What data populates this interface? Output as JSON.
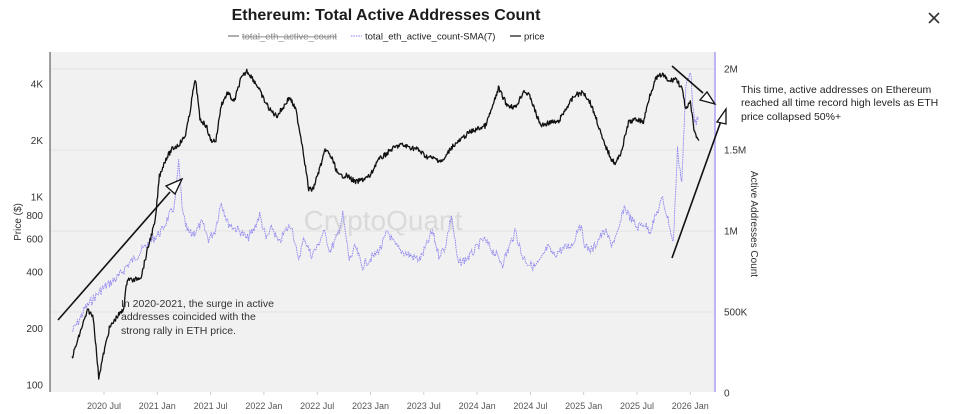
{
  "dialog": {
    "close_icon": "close-icon"
  },
  "chart_data": {
    "type": "line",
    "title": "Ethereum: Total Active Addresses Count",
    "legend": [
      {
        "name": "total_eth_active_count",
        "hidden": true,
        "color": "#777777"
      },
      {
        "name": "total_eth_active_count-SMA(7)",
        "hidden": false,
        "color": "#8c84f0"
      },
      {
        "name": "price",
        "hidden": false,
        "color": "#111111"
      }
    ],
    "legend_position": "top-center",
    "watermark": "CryptoQuant",
    "xlabel": "",
    "x_ticks": [
      "2020 Jul",
      "2021 Jan",
      "2021 Jul",
      "2022 Jan",
      "2022 Jul",
      "2023 Jan",
      "2023 Jul",
      "2024 Jan",
      "2024 Jul",
      "2025 Jan",
      "2025 Jul",
      "2026 Jan"
    ],
    "x_range": [
      "2020-03",
      "2026-02"
    ],
    "y_left": {
      "label": "Price ($)",
      "scale": "log",
      "ticks": [
        {
          "value": 100,
          "label": "100"
        },
        {
          "value": 200,
          "label": "200"
        },
        {
          "value": 400,
          "label": "400"
        },
        {
          "value": 600,
          "label": "600"
        },
        {
          "value": 800,
          "label": "800"
        },
        {
          "value": 1000,
          "label": "1K"
        },
        {
          "value": 2000,
          "label": "2K"
        },
        {
          "value": 4000,
          "label": "4K"
        }
      ],
      "range": [
        95,
        5000
      ]
    },
    "y_right": {
      "label": "Active Addresses Count",
      "scale": "linear",
      "ticks": [
        {
          "value": 0,
          "label": "0"
        },
        {
          "value": 500000,
          "label": "500K"
        },
        {
          "value": 1000000,
          "label": "1M"
        },
        {
          "value": 1500000,
          "label": "1.5M"
        },
        {
          "value": 2000000,
          "label": "2M"
        }
      ],
      "range": [
        0,
        2100000
      ]
    },
    "series": [
      {
        "name": "price",
        "axis": "left",
        "x": [
          2020.2,
          2020.25,
          2020.3,
          2020.35,
          2020.4,
          2020.45,
          2020.5,
          2020.55,
          2020.62,
          2020.68,
          2020.72,
          2020.78,
          2020.85,
          2020.92,
          2020.98,
          2021.02,
          2021.08,
          2021.14,
          2021.2,
          2021.26,
          2021.3,
          2021.34,
          2021.36,
          2021.4,
          2021.46,
          2021.5,
          2021.55,
          2021.6,
          2021.66,
          2021.72,
          2021.78,
          2021.84,
          2021.88,
          2021.94,
          2022.0,
          2022.06,
          2022.12,
          2022.18,
          2022.24,
          2022.3,
          2022.36,
          2022.42,
          2022.46,
          2022.52,
          2022.58,
          2022.64,
          2022.7,
          2022.78,
          2022.86,
          2022.94,
          2023.0,
          2023.06,
          2023.12,
          2023.2,
          2023.28,
          2023.36,
          2023.44,
          2023.52,
          2023.6,
          2023.68,
          2023.76,
          2023.84,
          2023.92,
          2024.0,
          2024.08,
          2024.16,
          2024.2,
          2024.28,
          2024.36,
          2024.44,
          2024.5,
          2024.56,
          2024.6,
          2024.68,
          2024.76,
          2024.84,
          2024.92,
          2025.0,
          2025.06,
          2025.12,
          2025.18,
          2025.26,
          2025.3,
          2025.36,
          2025.42,
          2025.5,
          2025.56,
          2025.62,
          2025.68,
          2025.74,
          2025.8,
          2025.86,
          2025.92,
          2025.96,
          2026.0,
          2026.04,
          2026.08
        ],
        "values": [
          140,
          170,
          210,
          250,
          230,
          110,
          150,
          200,
          230,
          250,
          370,
          360,
          380,
          560,
          740,
          1300,
          1600,
          1800,
          1900,
          2100,
          2700,
          3800,
          4200,
          2600,
          2400,
          2000,
          2000,
          3100,
          3600,
          3200,
          4200,
          4700,
          4400,
          3900,
          3300,
          2900,
          2700,
          3000,
          3400,
          2900,
          1900,
          1100,
          1100,
          1400,
          1800,
          1600,
          1300,
          1300,
          1200,
          1250,
          1300,
          1550,
          1650,
          1800,
          1900,
          1850,
          1800,
          1650,
          1600,
          1550,
          1850,
          2000,
          2200,
          2300,
          2400,
          3200,
          3800,
          3100,
          3000,
          3700,
          3400,
          2700,
          2400,
          2500,
          2500,
          3000,
          3500,
          3600,
          3200,
          2600,
          2000,
          1600,
          1500,
          1800,
          2500,
          2600,
          2500,
          3500,
          4300,
          4500,
          4100,
          4300,
          3800,
          2900,
          3200,
          2200,
          2000
        ]
      },
      {
        "name": "total_eth_active_count-SMA(7)",
        "axis": "right",
        "x": [
          2020.2,
          2020.26,
          2020.32,
          2020.4,
          2020.48,
          2020.56,
          2020.64,
          2020.72,
          2020.8,
          2020.88,
          2020.96,
          2021.04,
          2021.1,
          2021.16,
          2021.2,
          2021.24,
          2021.28,
          2021.32,
          2021.36,
          2021.42,
          2021.48,
          2021.54,
          2021.6,
          2021.66,
          2021.72,
          2021.78,
          2021.84,
          2021.9,
          2021.96,
          2022.02,
          2022.08,
          2022.14,
          2022.2,
          2022.26,
          2022.32,
          2022.38,
          2022.44,
          2022.5,
          2022.56,
          2022.62,
          2022.68,
          2022.74,
          2022.8,
          2022.86,
          2022.92,
          2022.98,
          2023.04,
          2023.1,
          2023.16,
          2023.22,
          2023.28,
          2023.34,
          2023.4,
          2023.46,
          2023.52,
          2023.58,
          2023.64,
          2023.7,
          2023.76,
          2023.82,
          2023.88,
          2023.94,
          2024.0,
          2024.06,
          2024.12,
          2024.18,
          2024.24,
          2024.3,
          2024.36,
          2024.42,
          2024.48,
          2024.54,
          2024.6,
          2024.66,
          2024.72,
          2024.78,
          2024.84,
          2024.9,
          2024.96,
          2025.02,
          2025.08,
          2025.14,
          2025.2,
          2025.26,
          2025.32,
          2025.38,
          2025.44,
          2025.5,
          2025.56,
          2025.62,
          2025.68,
          2025.74,
          2025.8,
          2025.84,
          2025.88,
          2025.92,
          2025.96,
          2026.0,
          2026.04,
          2026.08
        ],
        "values": [
          380000,
          440000,
          520000,
          580000,
          640000,
          680000,
          720000,
          790000,
          840000,
          900000,
          950000,
          1000000,
          1080000,
          1150000,
          1420000,
          1100000,
          1000000,
          980000,
          1000000,
          1050000,
          950000,
          1000000,
          1180000,
          1050000,
          1020000,
          1000000,
          950000,
          1000000,
          1100000,
          950000,
          1020000,
          920000,
          1000000,
          1040000,
          820000,
          960000,
          850000,
          900000,
          1000000,
          880000,
          950000,
          1100000,
          820000,
          900000,
          780000,
          820000,
          850000,
          900000,
          1000000,
          920000,
          880000,
          860000,
          840000,
          820000,
          900000,
          1000000,
          850000,
          900000,
          1100000,
          800000,
          820000,
          850000,
          900000,
          950000,
          900000,
          850000,
          800000,
          900000,
          1000000,
          850000,
          800000,
          780000,
          820000,
          900000,
          850000,
          880000,
          900000,
          920000,
          1050000,
          900000,
          880000,
          950000,
          1000000,
          920000,
          980000,
          1150000,
          1080000,
          1020000,
          1050000,
          1000000,
          1100000,
          1200000,
          1050000,
          920000,
          1500000,
          1300000,
          1900000,
          2000000,
          1650000,
          1700000
        ]
      }
    ],
    "annotations": [
      {
        "text_lines": [
          "In 2020-2021, the surge in active",
          "addresses coincided with the",
          "strong rally in ETH price."
        ]
      },
      {
        "text_lines": [
          "This time, active addresses on Ethereum",
          "reached all time record high levels as ETH",
          "price collapsed 50%+"
        ]
      }
    ]
  }
}
